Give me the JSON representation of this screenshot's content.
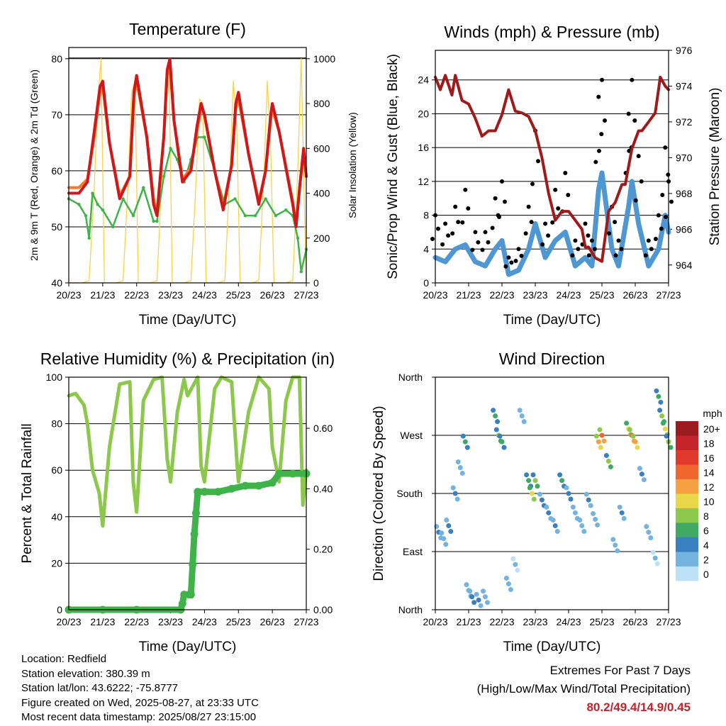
{
  "colors": {
    "temp_2m": "#d0181c",
    "temp_9m": "#f47a24",
    "dewpoint": "#3fb34a",
    "solar": "#f7d34a",
    "wind": "#4f97d2",
    "gust": "#000000",
    "pressure": "#a11a1a",
    "rh": "#8cc84b",
    "precip": "#3fb34a",
    "extremes_text": "#c8202b"
  },
  "chart_data": [
    {
      "type": "line",
      "title": "Temperature (F)",
      "xlabel": "Time (Day/UTC)",
      "ylabel": "2m & 9m T (Red, Orange) & 2m Td (Green)",
      "y2label": "Solar Insolation (Yellow)",
      "x_ticks": [
        "20/23",
        "21/23",
        "22/23",
        "23/23",
        "24/23",
        "25/23",
        "26/23",
        "27/23"
      ],
      "ylim": [
        40,
        82
      ],
      "y_ticks": [
        40,
        50,
        60,
        70,
        80
      ],
      "y2lim": [
        0,
        1050
      ],
      "y2_ticks": [
        0,
        200,
        400,
        600,
        800,
        1000
      ],
      "grid": true,
      "series": [
        {
          "key": "temp_2m",
          "axis": "left",
          "x": [
            0,
            0.3,
            0.55,
            0.75,
            0.92,
            1.0,
            1.2,
            1.5,
            1.8,
            1.92,
            2.0,
            2.3,
            2.5,
            2.6,
            2.8,
            2.9,
            2.98,
            3.1,
            3.35,
            3.6,
            3.78,
            3.9,
            4.0,
            4.3,
            4.55,
            4.8,
            4.92,
            5.0,
            5.3,
            5.6,
            5.8,
            5.95,
            6.0,
            6.2,
            6.6,
            6.7,
            6.82,
            6.92,
            7.0
          ],
          "y": [
            56,
            56,
            58,
            67,
            75,
            76,
            65,
            55,
            59,
            74,
            77,
            66,
            54,
            52,
            66,
            78,
            80,
            69,
            58,
            60,
            68,
            72,
            70,
            60,
            53,
            61,
            72,
            74,
            63,
            54,
            60,
            70,
            72,
            67,
            54,
            50,
            58,
            64,
            59
          ]
        },
        {
          "key": "temp_9m",
          "axis": "left",
          "x": [
            0,
            0.3,
            0.55,
            0.75,
            0.92,
            1.0,
            1.2,
            1.5,
            1.8,
            1.92,
            2.0,
            2.3,
            2.5,
            2.6,
            2.8,
            2.9,
            2.98,
            3.1,
            3.35,
            3.6,
            3.78,
            3.9,
            4.0,
            4.3,
            4.55,
            4.8,
            4.92,
            5.0,
            5.3,
            5.6,
            5.8,
            5.95,
            6.0,
            6.2,
            6.6,
            6.7,
            6.82,
            6.92,
            7.0
          ],
          "y": [
            57,
            57,
            58.5,
            66,
            74,
            75,
            65,
            55.5,
            59,
            73,
            76,
            66,
            55,
            52.5,
            66,
            77,
            79,
            69,
            58.5,
            60.5,
            67,
            71,
            70,
            60,
            53.5,
            61,
            71,
            73,
            63,
            54.5,
            60,
            69,
            71,
            67,
            54.5,
            50.5,
            58,
            63,
            59
          ]
        },
        {
          "key": "dewpoint",
          "axis": "left",
          "x": [
            0,
            0.3,
            0.5,
            0.6,
            0.7,
            0.85,
            1.0,
            1.3,
            1.6,
            1.9,
            2.2,
            2.5,
            2.6,
            2.8,
            3.0,
            3.2,
            3.4,
            3.6,
            3.8,
            4.0,
            4.3,
            4.6,
            4.9,
            5.2,
            5.5,
            5.8,
            6.1,
            6.4,
            6.6,
            6.75,
            6.85,
            7.0
          ],
          "y": [
            55,
            54,
            52,
            48,
            56,
            54,
            53,
            50,
            55,
            52,
            57,
            51,
            51,
            59,
            64,
            62,
            58,
            62,
            66,
            66,
            60,
            54,
            55,
            52,
            52,
            55,
            52,
            53,
            52,
            48,
            42,
            46
          ]
        },
        {
          "key": "solar",
          "axis": "right",
          "x": [
            0,
            0.4,
            0.6,
            0.75,
            0.85,
            0.95,
            1.05,
            1.4,
            1.6,
            1.75,
            1.85,
            1.95,
            2.05,
            2.4,
            2.6,
            2.75,
            2.85,
            2.95,
            3.05,
            3.4,
            3.6,
            3.75,
            3.85,
            3.95,
            4.05,
            4.4,
            4.6,
            4.75,
            4.85,
            4.95,
            5.05,
            5.4,
            5.6,
            5.75,
            5.85,
            5.95,
            6.05,
            6.4,
            6.6,
            6.75,
            6.85,
            6.95,
            7.0
          ],
          "y": [
            0,
            0,
            10,
            420,
            800,
            1000,
            0,
            0,
            10,
            450,
            850,
            900,
            0,
            0,
            10,
            480,
            900,
            1000,
            0,
            0,
            10,
            450,
            820,
            800,
            0,
            0,
            10,
            500,
            900,
            700,
            0,
            0,
            10,
            480,
            900,
            600,
            0,
            0,
            10,
            500,
            1000,
            300,
            0
          ]
        }
      ]
    },
    {
      "type": "line",
      "title": "Winds (mph) & Pressure (mb)",
      "xlabel": "Time (Day/UTC)",
      "ylabel": "Sonic/Prop Wind & Gust (Blue, Black)",
      "y2label": "Station Pressure (Maroon)",
      "x_ticks": [
        "20/23",
        "21/23",
        "22/23",
        "23/23",
        "24/23",
        "25/23",
        "26/23",
        "27/23"
      ],
      "ylim": [
        0,
        27.5
      ],
      "y_ticks": [
        0,
        4,
        8,
        12,
        16,
        20,
        24
      ],
      "y2lim": [
        963,
        976
      ],
      "y2_ticks": [
        964,
        966,
        968,
        970,
        972,
        974,
        976
      ],
      "grid": true,
      "series": [
        {
          "key": "wind",
          "axis": "left",
          "x": [
            0,
            0.3,
            0.6,
            0.9,
            1.2,
            1.5,
            1.8,
            2.0,
            2.2,
            2.5,
            2.8,
            3.0,
            3.3,
            3.6,
            3.9,
            4.2,
            4.5,
            4.7,
            4.9,
            5.0,
            5.3,
            5.5,
            5.8,
            5.9,
            6.1,
            6.4,
            6.7,
            6.9,
            7.0
          ],
          "y": [
            3,
            2.5,
            4,
            4.5,
            2.5,
            2,
            4,
            5,
            1,
            1.5,
            4,
            7,
            3,
            5,
            6,
            2,
            3,
            2,
            11,
            13,
            4,
            2,
            9,
            12,
            7,
            2,
            4,
            8,
            6
          ]
        },
        {
          "key": "gust",
          "axis": "left",
          "x": [
            0,
            0.3,
            0.6,
            0.9,
            1.2,
            1.5,
            1.8,
            2.0,
            2.2,
            2.5,
            2.8,
            3.0,
            3.3,
            3.6,
            3.9,
            4.2,
            4.5,
            4.7,
            4.9,
            5.0,
            5.3,
            5.5,
            5.8,
            5.9,
            6.1,
            6.4,
            6.7,
            6.9,
            7.0
          ],
          "y": [
            8,
            7,
            9,
            11,
            6,
            6,
            10,
            12,
            3,
            4,
            9,
            18,
            7,
            11,
            13,
            5,
            7,
            5,
            22,
            24,
            9,
            5,
            20,
            24,
            15,
            5,
            8,
            16,
            12
          ]
        },
        {
          "key": "pressure",
          "axis": "right",
          "x": [
            0,
            0.15,
            0.3,
            0.5,
            0.6,
            0.8,
            1.0,
            1.2,
            1.4,
            1.6,
            1.8,
            2.0,
            2.2,
            2.4,
            2.6,
            2.8,
            3.0,
            3.2,
            3.4,
            3.6,
            3.8,
            4.0,
            4.2,
            4.4,
            4.5,
            4.6,
            4.8,
            5.0,
            5.2,
            5.4,
            5.6,
            5.7,
            5.9,
            6.1,
            6.2,
            6.4,
            6.6,
            6.75,
            6.9,
            7.0
          ],
          "y": [
            974.5,
            973.8,
            974.6,
            973.5,
            974.6,
            973.2,
            973,
            972.2,
            971.2,
            971.5,
            971.5,
            972.4,
            973.8,
            972.6,
            972.5,
            972.3,
            971.5,
            970,
            968,
            966.5,
            967,
            967,
            966.5,
            966,
            965,
            965,
            964.4,
            964.2,
            967,
            967.5,
            968.5,
            968.5,
            970.5,
            971.5,
            971.5,
            972,
            972.5,
            974.5,
            974,
            973.8
          ]
        }
      ]
    },
    {
      "type": "line",
      "title": "Relative Humidity (%) & Precipitation (in)",
      "xlabel": "Time (Day/UTC)",
      "ylabel": "Percent & Total Rainfall",
      "x_ticks": [
        "20/23",
        "21/23",
        "22/23",
        "23/23",
        "24/23",
        "25/23",
        "26/23",
        "27/23"
      ],
      "ylim": [
        0,
        100
      ],
      "y_ticks": [
        0,
        20,
        40,
        60,
        80,
        100
      ],
      "y2lim": [
        0,
        0.769
      ],
      "y2_ticks": [
        "0.00",
        "0.20",
        "0.40",
        "0.60"
      ],
      "grid": true,
      "series": [
        {
          "key": "rh",
          "axis": "left",
          "x": [
            0,
            0.2,
            0.45,
            0.55,
            0.7,
            0.9,
            1.0,
            1.2,
            1.5,
            1.8,
            1.9,
            2.0,
            2.2,
            2.5,
            2.75,
            2.9,
            3.0,
            3.2,
            3.4,
            3.5,
            3.8,
            3.9,
            4.0,
            4.3,
            4.5,
            4.8,
            4.95,
            5.0,
            5.3,
            5.6,
            5.9,
            6.0,
            6.2,
            6.4,
            6.6,
            6.8,
            6.9,
            7.0
          ],
          "y": [
            92,
            93,
            88,
            80,
            60,
            50,
            36,
            70,
            97,
            98,
            55,
            42,
            90,
            99,
            100,
            65,
            55,
            85,
            99,
            92,
            100,
            62,
            55,
            95,
            100,
            98,
            65,
            55,
            85,
            100,
            95,
            70,
            55,
            90,
            100,
            100,
            45,
            60
          ]
        },
        {
          "key": "precip",
          "axis": "right",
          "x": [
            0,
            1,
            2,
            3.3,
            3.35,
            3.4,
            3.55,
            3.6,
            3.65,
            3.7,
            3.75,
            3.8,
            4.0,
            4.4,
            4.8,
            5.2,
            5.6,
            6.0,
            6.2,
            6.6,
            7.0
          ],
          "y": [
            0,
            0,
            0,
            0,
            0.02,
            0.05,
            0.05,
            0.05,
            0.15,
            0.25,
            0.32,
            0.39,
            0.39,
            0.39,
            0.4,
            0.41,
            0.41,
            0.42,
            0.45,
            0.45,
            0.45
          ]
        }
      ]
    },
    {
      "type": "scatter",
      "title": "Wind Direction",
      "xlabel": "Time (Day/UTC)",
      "ylabel": "Direction (Colored By Speed)",
      "x_ticks": [
        "20/23",
        "21/23",
        "22/23",
        "23/23",
        "24/23",
        "25/23",
        "26/23",
        "27/23"
      ],
      "y_ticks": [
        "North",
        "East",
        "South",
        "West",
        "North"
      ],
      "ylim": [
        0,
        360
      ],
      "grid": true,
      "legend": {
        "title": "mph",
        "position": "right",
        "labels": [
          "20+",
          "18",
          "16",
          "14",
          "12",
          "10",
          "8",
          "6",
          "4",
          "2",
          "0"
        ],
        "colors": [
          "#9b1b1e",
          "#c4232a",
          "#df3a2c",
          "#f0672e",
          "#f7a043",
          "#e8d748",
          "#8cc84b",
          "#3fa863",
          "#3a7fbf",
          "#74b2e0",
          "#bde1f7"
        ]
      },
      "series": [
        {
          "name": "points",
          "x": [
            0.1,
            0.25,
            0.4,
            0.6,
            0.75,
            0.9,
            1.0,
            1.1,
            1.3,
            1.5,
            1.8,
            1.9,
            2.0,
            2.2,
            2.4,
            2.6,
            2.8,
            2.9,
            3.0,
            3.2,
            3.4,
            3.6,
            3.8,
            4.0,
            4.2,
            4.4,
            4.6,
            4.8,
            4.9,
            5.0,
            5.2,
            5.4,
            5.6,
            5.8,
            5.9,
            6.0,
            6.2,
            6.4,
            6.6,
            6.7,
            6.8,
            6.9,
            7.0
          ],
          "y": [
            120,
            110,
            130,
            180,
            220,
            260,
            30,
            20,
            15,
            20,
            300,
            270,
            260,
            40,
            70,
            300,
            200,
            180,
            200,
            170,
            150,
            130,
            200,
            180,
            150,
            130,
            170,
            140,
            260,
            270,
            230,
            100,
            150,
            280,
            270,
            260,
            210,
            120,
            80,
            330,
            300,
            280,
            260
          ],
          "speed": [
            3,
            2,
            4,
            3,
            2,
            6,
            2,
            4,
            3,
            2,
            5,
            7,
            6,
            2,
            1,
            2,
            6,
            9,
            8,
            4,
            3,
            3,
            5,
            4,
            2,
            2,
            3,
            2,
            12,
            14,
            8,
            2,
            3,
            10,
            14,
            12,
            3,
            2,
            1,
            6,
            8,
            10,
            7
          ]
        }
      ]
    }
  ],
  "info": {
    "location": "Location: Redfield",
    "elevation": "Station elevation: 380.39 m",
    "latlon": "Station lat/lon: 43.6222; -75.8777",
    "created": "Figure created on Wed, 2025-08-27, at 23:33 UTC",
    "timestamp": "Most recent data timestamp: 2025/08/27 23:15:00"
  },
  "extremes": {
    "title": "Extremes For Past 7 Days",
    "subtitle": "(High/Low/Max Wind/Total Precipitation)",
    "values": "80.2/49.4/14.9/0.45"
  }
}
